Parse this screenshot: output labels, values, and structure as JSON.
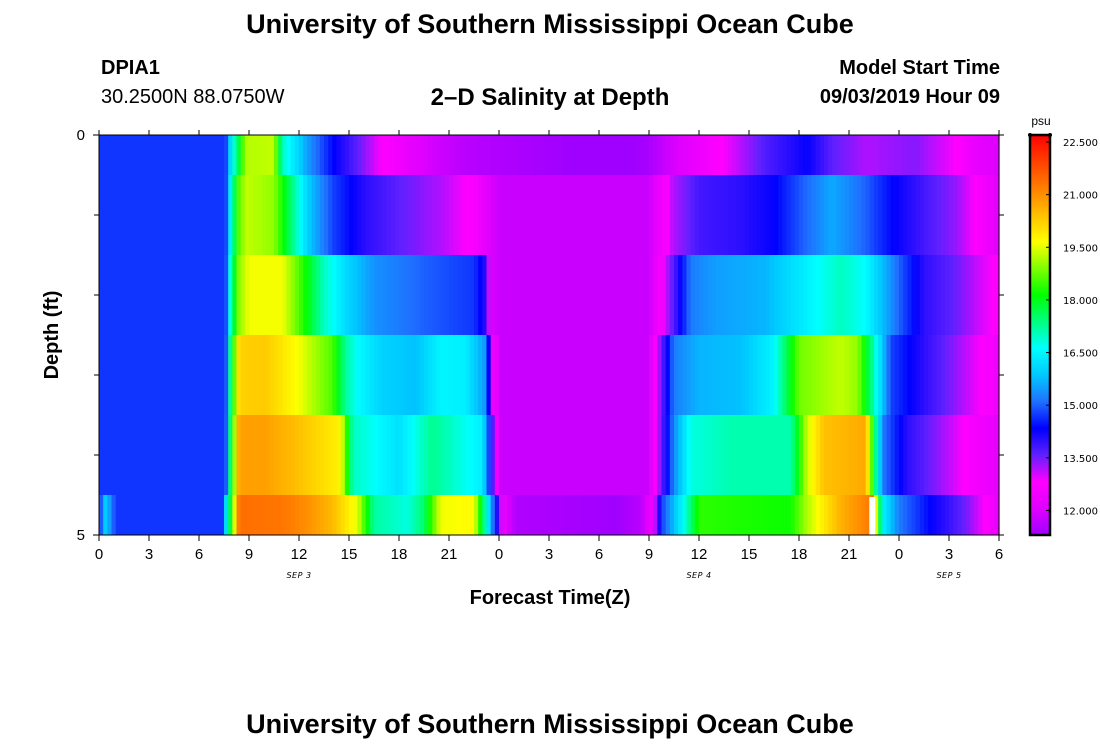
{
  "title_top": "University of Southern Mississippi Ocean Cube",
  "title_bottom": "University of Southern Mississippi Ocean Cube",
  "station": {
    "id": "DPIA1",
    "coords": "30.2500N 88.0750W"
  },
  "model": {
    "label": "Model Start Time",
    "time": "09/03/2019 Hour 09"
  },
  "chart_data": {
    "type": "heatmap",
    "title": "2–D Salinity at Depth",
    "xlabel": "Forecast Time(Z)",
    "ylabel": "Depth (ft)",
    "x_tick_labels": [
      "0",
      "3",
      "6",
      "9",
      "12",
      "15",
      "18",
      "21",
      "0",
      "3",
      "6",
      "9",
      "12",
      "15",
      "18",
      "21",
      "0",
      "3",
      "6"
    ],
    "day_labels": [
      {
        "label": "SEP 3",
        "hour": 12
      },
      {
        "label": "SEP 4",
        "hour": 36
      },
      {
        "label": "SEP 5",
        "hour": 51
      }
    ],
    "x_range_hours": [
      0,
      54
    ],
    "y_tick_labels": [
      "0",
      "5"
    ],
    "ylim": [
      0,
      5
    ],
    "colorbar": {
      "unit": "psu",
      "vmin": 11.3,
      "vmax": 22.7,
      "tick_labels": [
        "22.500",
        "21.000",
        "19.500",
        "18.000",
        "16.500",
        "15.000",
        "13.500",
        "12.000"
      ],
      "tick_values": [
        22.5,
        21.0,
        19.5,
        18.0,
        16.5,
        15.0,
        13.5,
        12.0
      ]
    },
    "layers": [
      {
        "depth_range_ft": [
          0,
          0.5
        ],
        "keys": [
          [
            0,
            14.7
          ],
          [
            7.6,
            14.7
          ],
          [
            7.9,
            16.2
          ],
          [
            8.3,
            17.5
          ],
          [
            8.8,
            19.2
          ],
          [
            10.5,
            19.3
          ],
          [
            11,
            17.0
          ],
          [
            12.5,
            15.5
          ],
          [
            14,
            14.4
          ],
          [
            15.5,
            13.6
          ],
          [
            17,
            12.8
          ],
          [
            18.5,
            12.3
          ],
          [
            20,
            11.9
          ],
          [
            22,
            11.6
          ],
          [
            26,
            11.4
          ],
          [
            28,
            11.3
          ],
          [
            31,
            11.2
          ],
          [
            33,
            11.4
          ],
          [
            34,
            11.8
          ],
          [
            36,
            12.4
          ],
          [
            38,
            13.0
          ],
          [
            40,
            13.7
          ],
          [
            42.5,
            14.3
          ],
          [
            44,
            13.6
          ],
          [
            46,
            13.2
          ],
          [
            49,
            13.4
          ],
          [
            51.5,
            12.8
          ],
          [
            52.8,
            12.2
          ],
          [
            54,
            12.0
          ]
        ]
      },
      {
        "depth_range_ft": [
          0.5,
          1.5
        ],
        "keys": [
          [
            0,
            14.7
          ],
          [
            7.6,
            14.7
          ],
          [
            7.9,
            16.5
          ],
          [
            8.3,
            18.5
          ],
          [
            8.8,
            19.3
          ],
          [
            10.5,
            19.0
          ],
          [
            11.5,
            17.5
          ],
          [
            12.5,
            16.0
          ],
          [
            14,
            14.8
          ],
          [
            16,
            14.0
          ],
          [
            18,
            13.6
          ],
          [
            20.5,
            13.2
          ],
          [
            22.5,
            12.7
          ],
          [
            23.5,
            12.0
          ],
          [
            24,
            11.8
          ],
          [
            33,
            11.8
          ],
          [
            33.4,
            12.2
          ],
          [
            34.5,
            13.2
          ],
          [
            36,
            13.8
          ],
          [
            38.5,
            14.0
          ],
          [
            40.5,
            14.3
          ],
          [
            42,
            14.9
          ],
          [
            44,
            15.6
          ],
          [
            46,
            15.0
          ],
          [
            47.5,
            14.4
          ],
          [
            49.5,
            13.8
          ],
          [
            51.5,
            13.3
          ],
          [
            53,
            12.6
          ],
          [
            54,
            12.1
          ]
        ]
      },
      {
        "depth_range_ft": [
          1.5,
          2.5
        ],
        "keys": [
          [
            0,
            14.7
          ],
          [
            7.6,
            14.7
          ],
          [
            7.9,
            17.0
          ],
          [
            8.4,
            19.0
          ],
          [
            9,
            19.6
          ],
          [
            11,
            19.6
          ],
          [
            12,
            18.6
          ],
          [
            13.5,
            17.0
          ],
          [
            15,
            16.0
          ],
          [
            16.5,
            15.4
          ],
          [
            19.5,
            15.0
          ],
          [
            22.5,
            14.7
          ],
          [
            23.2,
            14.0
          ],
          [
            23.6,
            12.0
          ],
          [
            24,
            11.8
          ],
          [
            33,
            11.8
          ],
          [
            33.4,
            12.3
          ],
          [
            34.5,
            13.7
          ],
          [
            35.5,
            15.2
          ],
          [
            37,
            15.5
          ],
          [
            40,
            15.7
          ],
          [
            42,
            16.3
          ],
          [
            44.5,
            17.0
          ],
          [
            46,
            16.6
          ],
          [
            48,
            15.0
          ],
          [
            49.5,
            14.0
          ],
          [
            51.5,
            13.5
          ],
          [
            53,
            13.0
          ],
          [
            54,
            12.7
          ]
        ]
      },
      {
        "depth_range_ft": [
          2.5,
          3.5
        ],
        "keys": [
          [
            0,
            14.7
          ],
          [
            7.6,
            14.7
          ],
          [
            7.9,
            17.5
          ],
          [
            8.4,
            20.2
          ],
          [
            10,
            20.3
          ],
          [
            12,
            19.6
          ],
          [
            14,
            18.6
          ],
          [
            14.8,
            17.2
          ],
          [
            15.5,
            16.6
          ],
          [
            17,
            16.0
          ],
          [
            19,
            15.8
          ],
          [
            20.5,
            16.5
          ],
          [
            22,
            16.4
          ],
          [
            23.2,
            15.4
          ],
          [
            23.6,
            13.0
          ],
          [
            24,
            11.8
          ],
          [
            33,
            11.8
          ],
          [
            33.4,
            12.8
          ],
          [
            34.5,
            15.2
          ],
          [
            36,
            15.7
          ],
          [
            38.5,
            15.8
          ],
          [
            40.5,
            16.5
          ],
          [
            42,
            18.8
          ],
          [
            44.5,
            19.3
          ],
          [
            45.5,
            19.0
          ],
          [
            46.3,
            17.5
          ],
          [
            47.5,
            14.8
          ],
          [
            49.5,
            14.0
          ],
          [
            51.5,
            13.3
          ],
          [
            53,
            12.8
          ],
          [
            54,
            12.4
          ]
        ]
      },
      {
        "depth_range_ft": [
          3.5,
          4.5
        ],
        "keys": [
          [
            0,
            14.7
          ],
          [
            7.6,
            14.7
          ],
          [
            7.9,
            17.7
          ],
          [
            8.4,
            20.8
          ],
          [
            10,
            20.8
          ],
          [
            12,
            20.4
          ],
          [
            14.5,
            19.8
          ],
          [
            15.2,
            17.0
          ],
          [
            16,
            16.8
          ],
          [
            18,
            16.2
          ],
          [
            20,
            17.3
          ],
          [
            21,
            17.0
          ],
          [
            23,
            16.4
          ],
          [
            23.5,
            14.3
          ],
          [
            24,
            11.8
          ],
          [
            33,
            11.8
          ],
          [
            33.4,
            12.8
          ],
          [
            34.5,
            15.3
          ],
          [
            35.5,
            16.8
          ],
          [
            38,
            17.1
          ],
          [
            41.5,
            17.1
          ],
          [
            42.5,
            19.4
          ],
          [
            43.5,
            20.4
          ],
          [
            46,
            20.7
          ],
          [
            46.4,
            18.5
          ],
          [
            47,
            15.2
          ],
          [
            48.5,
            14.0
          ],
          [
            50.5,
            13.3
          ],
          [
            52.5,
            12.6
          ],
          [
            54,
            12.2
          ]
        ]
      },
      {
        "depth_range_ft": [
          4.5,
          5.0
        ],
        "keys": [
          [
            0,
            14.5
          ],
          [
            0.4,
            16.0
          ],
          [
            1,
            14.7
          ],
          [
            7.4,
            14.7
          ],
          [
            7.8,
            17.2
          ],
          [
            8.4,
            21.4
          ],
          [
            11,
            21.3
          ],
          [
            12.5,
            21.0
          ],
          [
            14,
            20.5
          ],
          [
            15.5,
            19.5
          ],
          [
            16.5,
            17.2
          ],
          [
            18.5,
            16.8
          ],
          [
            19.5,
            17.5
          ],
          [
            20.5,
            19.6
          ],
          [
            22.5,
            19.7
          ],
          [
            23.2,
            17.0
          ],
          [
            23.7,
            14.8
          ],
          [
            24.3,
            12.3
          ],
          [
            25,
            11.5
          ],
          [
            31,
            11.3
          ],
          [
            32.5,
            11.6
          ],
          [
            33.2,
            12.5
          ],
          [
            33.8,
            14.8
          ],
          [
            35,
            16.5
          ],
          [
            36,
            18.4
          ],
          [
            38.5,
            18.3
          ],
          [
            41.5,
            18.2
          ],
          [
            42.5,
            19.2
          ],
          [
            44.5,
            20.6
          ],
          [
            46.4,
            21.3
          ],
          [
            47,
            16.5
          ],
          [
            48,
            15.2
          ],
          [
            50,
            14.3
          ],
          [
            52,
            13.5
          ],
          [
            53.5,
            12.6
          ],
          [
            54,
            12.2
          ]
        ]
      }
    ],
    "missing_value_marker": {
      "hour": 46.4,
      "depth_range_ft": [
        4.5,
        5.0
      ]
    }
  },
  "colors": {
    "ramp": [
      "#a000ff",
      "#e000ff",
      "#ff00ff",
      "#6020ff",
      "#0000ff",
      "#2070ff",
      "#00c8ff",
      "#00ffff",
      "#00ff80",
      "#00ff00",
      "#80ff00",
      "#ffff00",
      "#ffc000",
      "#ff8000",
      "#ff4000",
      "#ff0000"
    ]
  }
}
